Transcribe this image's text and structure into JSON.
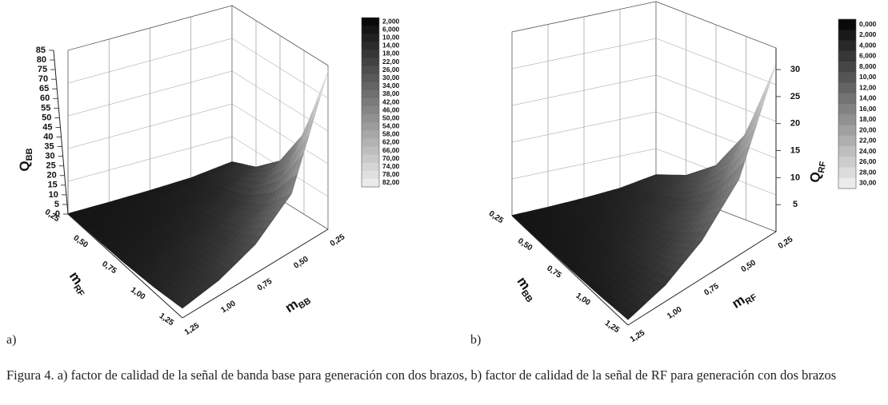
{
  "caption": "Figura 4. a) factor de calidad de la señal de banda base para generación con dos brazos, b) factor de calidad de la señal de RF para generación con dos brazos",
  "panel_labels": [
    "a)",
    "b)"
  ],
  "chart_data": [
    {
      "type": "surface3d",
      "panel": "a)",
      "zlabel": "Q_BB",
      "xlabel": "m_BB",
      "ylabel": "m_RF",
      "x_ticks": [
        "0,25",
        "0,50",
        "0,75",
        "1,00",
        "1,25"
      ],
      "y_ticks": [
        "0,25",
        "0,50",
        "0,75",
        "1,00",
        "1,25"
      ],
      "z_ticks": [
        "0",
        "5",
        "10",
        "15",
        "20",
        "25",
        "30",
        "35",
        "40",
        "45",
        "50",
        "55",
        "60",
        "65",
        "70",
        "75",
        "80",
        "85"
      ],
      "zlim": [
        0,
        85
      ],
      "legend_position": "top-right",
      "colorbar_labels": [
        "2,000",
        "6,000",
        "10,00",
        "14,00",
        "18,00",
        "22,00",
        "26,00",
        "30,00",
        "34,00",
        "38,00",
        "42,00",
        "46,00",
        "50,00",
        "54,00",
        "58,00",
        "62,00",
        "66,00",
        "70,00",
        "74,00",
        "78,00",
        "82,00"
      ],
      "x": [
        0.25,
        0.5,
        0.75,
        1.0,
        1.25
      ],
      "y": [
        0.25,
        0.5,
        0.75,
        1.0,
        1.25
      ],
      "z_profile_along_y": [
        82,
        42,
        20,
        9,
        4
      ],
      "z_profile_along_x": [
        82,
        30,
        15,
        8,
        5
      ],
      "grid": true
    },
    {
      "type": "surface3d",
      "panel": "b)",
      "zlabel": "Q_RF",
      "xlabel": "m_RF",
      "ylabel": "m_BB",
      "x_ticks": [
        "0,25",
        "0,50",
        "0,75",
        "1,00",
        "1,25"
      ],
      "y_ticks": [
        "0,25",
        "0,50",
        "0,75",
        "1,00",
        "1,25"
      ],
      "z_ticks": [
        "5",
        "10",
        "15",
        "20",
        "25",
        "30"
      ],
      "zlim": [
        0,
        34
      ],
      "legend_position": "top-right",
      "colorbar_labels": [
        "0,000",
        "2,000",
        "4,000",
        "6,000",
        "8,000",
        "10,00",
        "12,00",
        "14,00",
        "16,00",
        "18,00",
        "20,00",
        "22,00",
        "24,00",
        "26,00",
        "28,00",
        "30,00"
      ],
      "x": [
        0.25,
        0.5,
        0.75,
        1.0,
        1.25
      ],
      "y": [
        0.25,
        0.5,
        0.75,
        1.0,
        1.25
      ],
      "z_profile_along_y": [
        31,
        16,
        8,
        4,
        2
      ],
      "z_profile_along_x": [
        31,
        14,
        7,
        3,
        1
      ],
      "grid": true
    }
  ]
}
